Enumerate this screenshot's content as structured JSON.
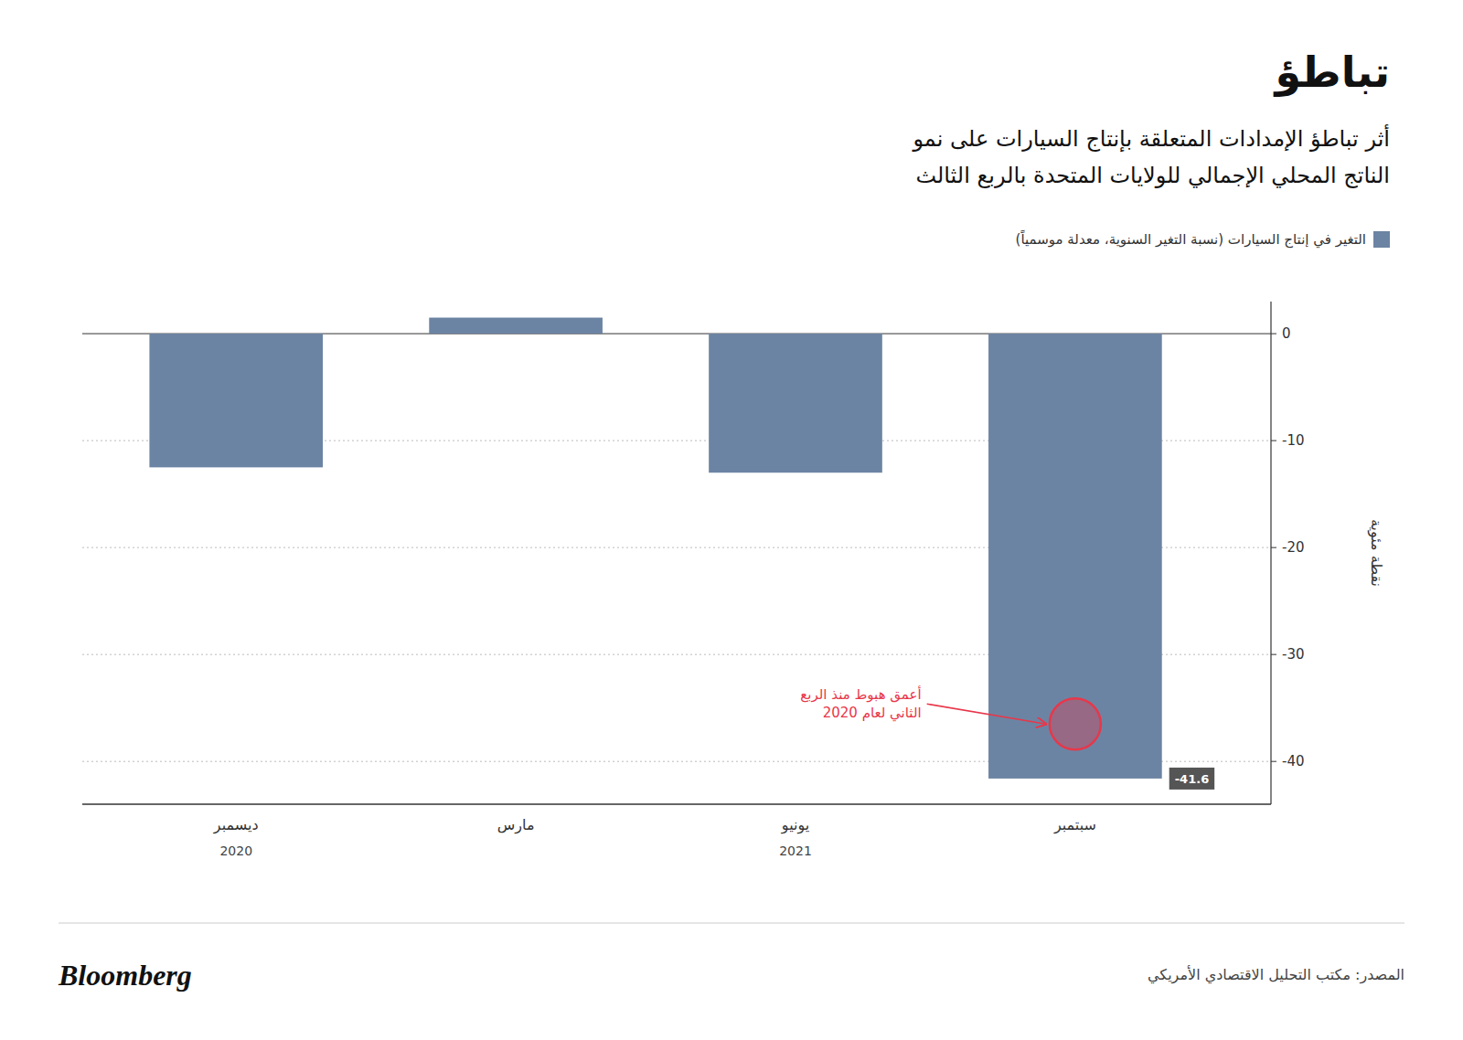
{
  "chart_data": {
    "type": "bar",
    "title": "تباطؤ",
    "subtitle": [
      "أثر تباطؤ الإمدادات المتعلقة بإنتاج السيارات على نمو",
      "الناتج المحلي الإجمالي للولايات المتحدة بالربع الثالث"
    ],
    "categories": [
      "ديسمبر",
      "مارس",
      "يونيو",
      "سبتمبر"
    ],
    "x_group_labels": [
      {
        "text": "2020",
        "category": "ديسمبر"
      },
      {
        "text": "2021",
        "category": "يونيو"
      }
    ],
    "series": [
      {
        "name": "التغير في إنتاج السيارات (نسبة التغير السنوية، معدلة موسمياً)",
        "color": "#6C84A3",
        "values": [
          -12.5,
          1.5,
          -13.0,
          -41.6
        ],
        "value_labels": [
          null,
          null,
          null,
          "-41.6"
        ]
      }
    ],
    "ylabel": "نقطة مئوية",
    "ylim": [
      -44,
      3
    ],
    "yticks": [
      0,
      -10,
      -20,
      -30,
      -40
    ],
    "grid": true,
    "legend": "top-right",
    "annotations": [
      {
        "text": "أعمق هبوط منذ الربع\nالثاني لعام 2020",
        "category": "سبتمبر",
        "value": -36.5,
        "color": "#e8374a",
        "marker": "circle"
      }
    ],
    "source": "المصدر: مكتب التحليل الاقتصادي الأمريكي",
    "credit": "Bloomberg"
  }
}
